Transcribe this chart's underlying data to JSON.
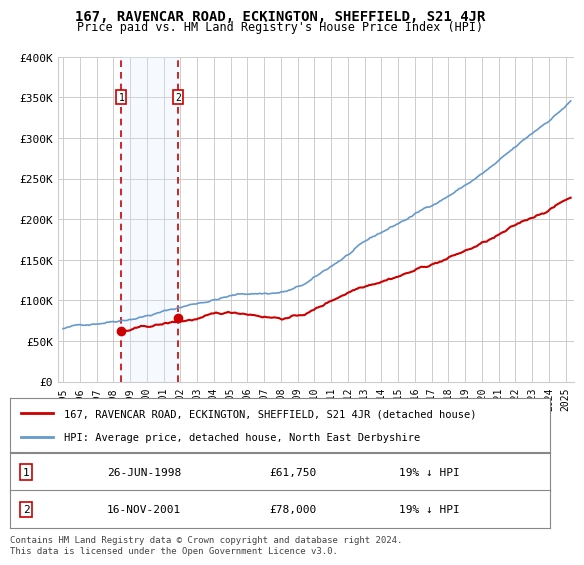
{
  "title": "167, RAVENCAR ROAD, ECKINGTON, SHEFFIELD, S21 4JR",
  "subtitle": "Price paid vs. HM Land Registry's House Price Index (HPI)",
  "ylabel": "",
  "xlabel": "",
  "ylim": [
    0,
    400000
  ],
  "xlim_start": 1995.0,
  "xlim_end": 2025.5,
  "yticks": [
    0,
    50000,
    100000,
    150000,
    200000,
    250000,
    300000,
    350000,
    400000
  ],
  "ytick_labels": [
    "£0",
    "£50K",
    "£100K",
    "£150K",
    "£200K",
    "£250K",
    "£300K",
    "£350K",
    "£400K"
  ],
  "sale1_date": 1998.48,
  "sale1_price": 61750,
  "sale1_label": "1",
  "sale1_date_str": "26-JUN-1998",
  "sale1_price_str": "£61,750",
  "sale1_hpi_str": "19% ↓ HPI",
  "sale2_date": 2001.88,
  "sale2_price": 78000,
  "sale2_label": "2",
  "sale2_date_str": "16-NOV-2001",
  "sale2_price_str": "£78,000",
  "sale2_hpi_str": "19% ↓ HPI",
  "property_color": "#cc0000",
  "hpi_color": "#6699cc",
  "legend1": "167, RAVENCAR ROAD, ECKINGTON, SHEFFIELD, S21 4JR (detached house)",
  "legend2": "HPI: Average price, detached house, North East Derbyshire",
  "footnote": "Contains HM Land Registry data © Crown copyright and database right 2024.\nThis data is licensed under the Open Government Licence v3.0.",
  "background_color": "#ffffff",
  "grid_color": "#cccccc",
  "shade_color": "#ddeeff"
}
